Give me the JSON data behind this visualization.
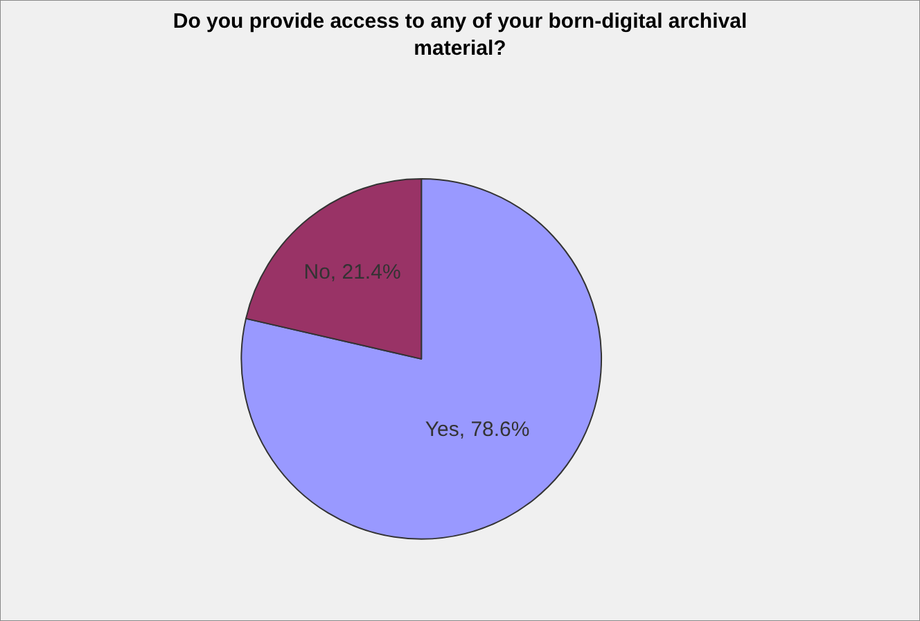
{
  "chart_data": {
    "type": "pie",
    "title": "Do you provide access to any of your born-digital archival\nmaterial?",
    "categories": [
      "Yes",
      "No"
    ],
    "values": [
      78.6,
      21.4
    ],
    "colors": [
      "#9999ff",
      "#993366"
    ],
    "value_labels": [
      "78.6%",
      "21.4%"
    ]
  }
}
